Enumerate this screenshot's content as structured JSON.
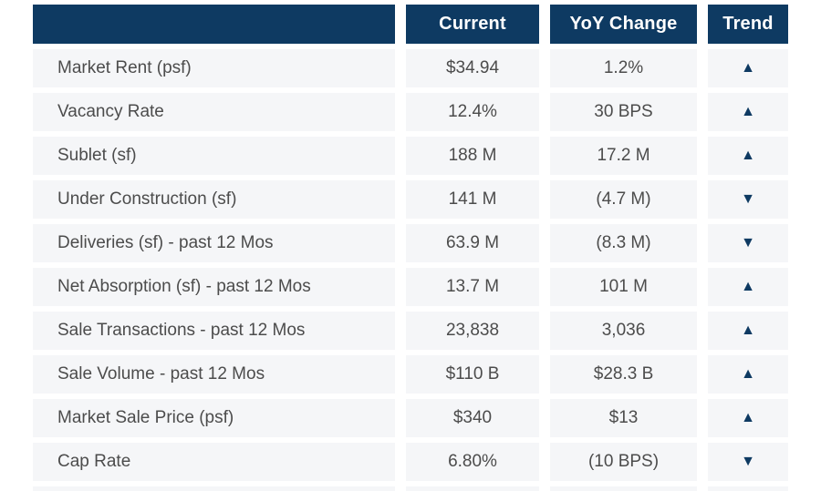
{
  "chart_data": {
    "type": "table",
    "columns": [
      "",
      "Current",
      "YoY Change",
      "Trend"
    ],
    "rows": [
      {
        "label": "Market Rent (psf)",
        "current": "$34.94",
        "yoy_change": "1.2%",
        "trend": "up"
      },
      {
        "label": "Vacancy Rate",
        "current": "12.4%",
        "yoy_change": "30 BPS",
        "trend": "up"
      },
      {
        "label": "Sublet (sf)",
        "current": "188 M",
        "yoy_change": "17.2 M",
        "trend": "up"
      },
      {
        "label": "Under Construction (sf)",
        "current": "141 M",
        "yoy_change": "(4.7 M)",
        "trend": "down"
      },
      {
        "label": "Deliveries (sf) - past 12 Mos",
        "current": "63.9 M",
        "yoy_change": "(8.3 M)",
        "trend": "down"
      },
      {
        "label": "Net Absorption (sf) - past 12 Mos",
        "current": "13.7 M",
        "yoy_change": "101 M",
        "trend": "up"
      },
      {
        "label": "Sale Transactions - past 12 Mos",
        "current": "23,838",
        "yoy_change": "3,036",
        "trend": "up"
      },
      {
        "label": "Sale Volume - past 12 Mos",
        "current": "$110 B",
        "yoy_change": "$28.3 B",
        "trend": "up"
      },
      {
        "label": "Market Sale Price (psf)",
        "current": "$340",
        "yoy_change": "$13",
        "trend": "up"
      },
      {
        "label": "Cap Rate",
        "current": "6.80%",
        "yoy_change": "(10 BPS)",
        "trend": "down"
      }
    ],
    "icons": {
      "up": "▲",
      "down": "▼"
    },
    "colors": {
      "header_bg": "#0e3a62",
      "header_text": "#ffffff",
      "row_bg": "#f5f6f8",
      "body_text": "#4c4c4c",
      "trend_icon": "#0e3a62",
      "background": "#ffffff"
    },
    "layout": {
      "grid": "off",
      "legend": "none",
      "row_separators": "white-gutters"
    }
  }
}
